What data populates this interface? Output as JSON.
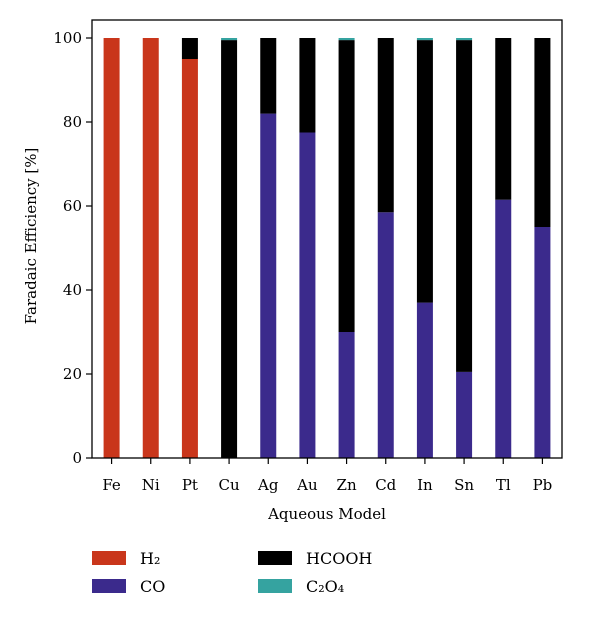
{
  "chart_data": {
    "type": "bar",
    "stacked": true,
    "title": "",
    "xlabel": "Aqueous Model",
    "ylabel": "Faradaic Efficiency [%]",
    "ylim": [
      0,
      100
    ],
    "yticks": [
      "0",
      "20",
      "40",
      "60",
      "80",
      "100"
    ],
    "categories": [
      "Fe",
      "Ni",
      "Pt",
      "Cu",
      "Ag",
      "Au",
      "Zn",
      "Cd",
      "In",
      "Sn",
      "Tl",
      "Pb"
    ],
    "series": [
      {
        "name": "H₂",
        "color": "#c9361b",
        "values": [
          100,
          100,
          95,
          0,
          0,
          0,
          0,
          0,
          0,
          0,
          0,
          0
        ]
      },
      {
        "name": "CO",
        "color": "#3b2a8c",
        "values": [
          0,
          0,
          0,
          0,
          82,
          77.5,
          30,
          58.5,
          37,
          20.5,
          61.5,
          55
        ]
      },
      {
        "name": "HCOOH",
        "color": "#000000",
        "values": [
          0,
          0,
          5,
          99.5,
          18,
          22.5,
          69.5,
          41.5,
          62.5,
          79,
          38.5,
          45
        ]
      },
      {
        "name": "C₂O₄",
        "color": "#35a3a0",
        "values": [
          0,
          0,
          0,
          0.5,
          0,
          0,
          0.5,
          0,
          0.5,
          0.5,
          0,
          0
        ]
      }
    ],
    "grid": false,
    "legend_position": "bottom"
  },
  "legend": {
    "items": [
      {
        "label": "H₂",
        "color": "#c9361b"
      },
      {
        "label": "CO",
        "color": "#3b2a8c"
      },
      {
        "label": "HCOOH",
        "color": "#000000"
      },
      {
        "label": "C₂O₄",
        "color": "#35a3a0"
      }
    ]
  }
}
